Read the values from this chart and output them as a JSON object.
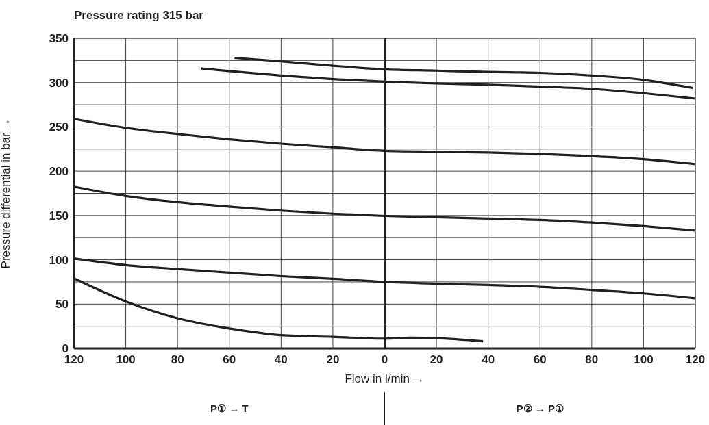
{
  "chart_data": {
    "type": "line",
    "title": "Pressure rating 315 bar",
    "xlabel": "Flow in l/min →",
    "ylabel": "Pressure differential in bar →",
    "xlim": [
      -120,
      120
    ],
    "xticks": [
      {
        "value": -120,
        "label": "120"
      },
      {
        "value": -100,
        "label": "100"
      },
      {
        "value": -80,
        "label": "80"
      },
      {
        "value": -60,
        "label": "60"
      },
      {
        "value": -40,
        "label": "40"
      },
      {
        "value": -20,
        "label": "20"
      },
      0,
      20,
      40,
      60,
      80,
      100,
      120
    ],
    "ylim": [
      0,
      350
    ],
    "yticks": [
      0,
      {
        "value": 25,
        "label": null
      },
      50,
      {
        "value": 75,
        "label": null
      },
      100,
      {
        "value": 125,
        "label": null
      },
      150,
      {
        "value": 175,
        "label": null
      },
      200,
      {
        "value": 225,
        "label": null
      },
      250,
      {
        "value": 275,
        "label": null
      },
      300,
      {
        "value": 325,
        "label": null
      },
      350
    ],
    "grid": true,
    "marker": "none",
    "line_style": "solid",
    "ref_lines": [
      {
        "axis": "x",
        "value": 0,
        "color": "#231f20"
      }
    ],
    "annotations": [
      "P① → T",
      "P② → P①"
    ],
    "series": [
      {
        "color": "#231f20",
        "x": [
          -58,
          -40,
          -20,
          0,
          20,
          40,
          60,
          80,
          100,
          119
        ],
        "values": [
          328,
          324,
          319,
          315,
          313.5,
          312,
          311,
          308,
          303,
          294
        ]
      },
      {
        "color": "#231f20",
        "x": [
          -71,
          -60,
          -40,
          -20,
          0,
          20,
          40,
          60,
          80,
          100,
          120
        ],
        "values": [
          316,
          313,
          308,
          304,
          301,
          299,
          297.5,
          295.5,
          293,
          288,
          282
        ]
      },
      {
        "color": "#231f20",
        "x": [
          -120,
          -100,
          -80,
          -60,
          -40,
          -20,
          0,
          20,
          40,
          60,
          80,
          100,
          120
        ],
        "values": [
          259,
          249,
          242,
          236,
          231,
          227,
          223,
          222,
          221,
          219.5,
          217,
          213.5,
          208
        ]
      },
      {
        "color": "#231f20",
        "x": [
          -120,
          -100,
          -80,
          -60,
          -40,
          -20,
          0,
          20,
          40,
          60,
          80,
          100,
          120
        ],
        "values": [
          182.5,
          172,
          165,
          160,
          155.5,
          152,
          149.5,
          148,
          146.5,
          145,
          142,
          138,
          133
        ]
      },
      {
        "color": "#231f20",
        "x": [
          -120,
          -100,
          -80,
          -60,
          -40,
          -20,
          0,
          20,
          40,
          60,
          80,
          100,
          120
        ],
        "values": [
          101.5,
          94,
          89.5,
          85.5,
          81.5,
          78.5,
          75,
          73,
          71.5,
          69.5,
          66,
          62,
          56.5
        ]
      },
      {
        "color": "#231f20",
        "x": [
          -120,
          -100,
          -80,
          -60,
          -40,
          -20,
          0,
          10,
          20,
          38
        ],
        "values": [
          79,
          53,
          34,
          22.5,
          15,
          13,
          11,
          12,
          11.5,
          8
        ]
      }
    ]
  }
}
